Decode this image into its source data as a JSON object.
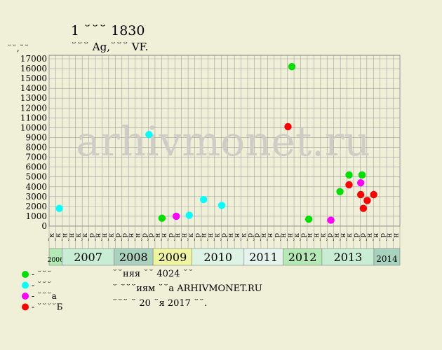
{
  "header": {
    "title": "1 ꙾꙾꙾ 1830",
    "subtitle": "꙾꙾꙾ Ag,꙾꙾꙾ VF.",
    "y_unit": "꙾꙾,꙾꙾"
  },
  "watermark": "arhivmonet.ru",
  "legend": [
    {
      "label": "- ꙾꙾꙾",
      "color": "#00e000"
    },
    {
      "label": "- ꙾꙾꙾",
      "color": "#00ffff"
    },
    {
      "label": "- ꙾꙾꙾а",
      "color": "#ff00ff"
    },
    {
      "label": "- ꙾꙾꙾꙾Б",
      "color": "#ff0000"
    }
  ],
  "notes": [
    "꙾꙾няя ꙾꙾ 4024 ꙾꙾",
    "꙾ ꙾꙾꙾иям ꙾꙾а ARHIVMONET.RU",
    "꙾꙾꙾ ꙾ 20 ꙾я 2017 ꙾꙾."
  ],
  "chart_data": {
    "type": "scatter",
    "ylim": [
      0,
      17000
    ],
    "yticks": [
      0,
      1000,
      2000,
      3000,
      4000,
      5000,
      6000,
      7000,
      8000,
      9000,
      10000,
      11000,
      12000,
      13000,
      14000,
      15000,
      16000,
      17000
    ],
    "x_ticks": [
      "꙾к",
      "꙾к",
      "꙾н",
      "꙾н",
      "꙾к",
      "꙾к",
      "꙾р",
      "꙾н",
      "꙾н",
      "꙾к",
      "꙾р",
      "꙾р",
      "꙾н",
      "꙾н",
      "꙾р",
      "꙾р",
      "꙾н",
      "꙾н",
      "꙾р",
      "꙾н",
      "꙾н",
      "꙾к",
      "꙾р",
      "꙾н",
      "꙾н",
      "꙾к",
      "꙾р",
      "꙾н",
      "꙾н",
      "꙾к",
      "꙾р",
      "꙾р",
      "꙾н",
      "꙾н",
      "꙾р",
      "꙾н",
      "꙾н",
      "꙾к",
      "꙾р",
      "꙾н",
      "꙾н",
      "꙾к",
      "꙾р",
      "꙾н",
      "꙾н",
      "꙾к",
      "꙾р",
      "꙾р",
      "꙾н",
      "꙾н",
      "꙾р",
      "꙾н",
      "꙾н",
      "꙾к",
      "꙾р",
      "꙾н",
      "꙾н",
      "꙾к",
      "꙾р",
      "꙾н",
      "꙾н",
      "꙾к",
      "꙾р",
      "꙾р",
      "꙾н",
      "꙾н"
    ],
    "years": [
      {
        "label": "2006",
        "from": 0,
        "to": 1,
        "color": "#b4e8b4"
      },
      {
        "label": "2007",
        "from": 1,
        "to": 5,
        "color": "#c8ecd4"
      },
      {
        "label": "2008",
        "from": 5,
        "to": 8,
        "color": "#a8d2be"
      },
      {
        "label": "2009",
        "from": 8,
        "to": 11,
        "color": "#eef4a0"
      },
      {
        "label": "2010",
        "from": 11,
        "to": 15,
        "color": "#ddf4e4"
      },
      {
        "label": "2011",
        "from": 15,
        "to": 18,
        "color": "#e4f4ec"
      },
      {
        "label": "2012",
        "from": 18,
        "to": 21,
        "color": "#b4e8b4"
      },
      {
        "label": "2013",
        "from": 21,
        "to": 25,
        "color": "#c8ecd4"
      },
      {
        "label": "2014",
        "from": 25,
        "to": 27,
        "color": "#a8d2be"
      }
    ],
    "series": [
      {
        "color": "#00e000",
        "points": [
          {
            "x": 8.2,
            "y": 800
          },
          {
            "x": 18.2,
            "y": 16200
          },
          {
            "x": 19.5,
            "y": 700
          },
          {
            "x": 21.9,
            "y": 3500
          },
          {
            "x": 22.6,
            "y": 5200
          },
          {
            "x": 23.6,
            "y": 5200
          }
        ]
      },
      {
        "color": "#00ffff",
        "points": [
          {
            "x": 0.3,
            "y": 1800
          },
          {
            "x": 7.2,
            "y": 9300
          },
          {
            "x": 10.3,
            "y": 1100
          },
          {
            "x": 11.4,
            "y": 2700
          },
          {
            "x": 12.8,
            "y": 2100
          }
        ]
      },
      {
        "color": "#ff00ff",
        "points": [
          {
            "x": 9.3,
            "y": 1000
          },
          {
            "x": 21.2,
            "y": 600
          },
          {
            "x": 23.5,
            "y": 4400
          }
        ]
      },
      {
        "color": "#ff0000",
        "points": [
          {
            "x": 17.9,
            "y": 10100
          },
          {
            "x": 22.6,
            "y": 4200
          },
          {
            "x": 23.5,
            "y": 3200
          },
          {
            "x": 23.7,
            "y": 1800
          },
          {
            "x": 24.0,
            "y": 2600
          },
          {
            "x": 24.5,
            "y": 3200
          }
        ]
      }
    ]
  }
}
